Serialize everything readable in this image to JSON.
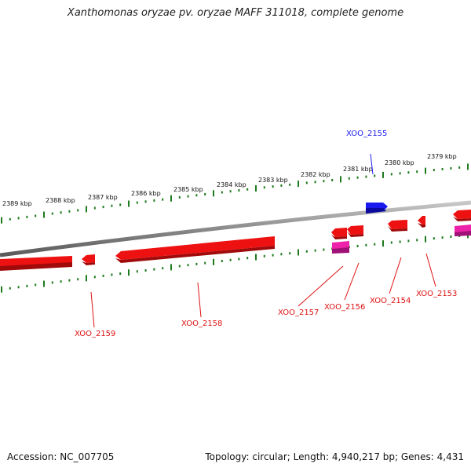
{
  "title": "Xanthomonas oryzae pv. oryzae MAFF 311018, complete genome",
  "footer": {
    "accession": "Accession: NC_007705",
    "summary": "Topology: circular; Length: 4,940,217 bp; Genes: 4,431"
  },
  "colors": {
    "backbone": "#8a8a8a",
    "tick": "#1e7a1e",
    "gene_forward": "#1a1aee",
    "gene_reverse": "#ee1111",
    "gene_reverse_alt": "#ee22aa",
    "label_forward": "#1a1aee",
    "label_reverse": "#dd1111"
  },
  "scale_labels": [
    "2389 kbp",
    "2388 kbp",
    "2387 kbp",
    "2386 kbp",
    "2385 kbp",
    "2384 kbp",
    "2383 kbp",
    "2382 kbp",
    "2381 kbp",
    "2380 kbp",
    "2379 kbp"
  ],
  "genes": [
    {
      "label": "XOO_2155",
      "strand": "+"
    },
    {
      "label": "XOO_2153",
      "strand": "-"
    },
    {
      "label": "XOO_2154",
      "strand": "-"
    },
    {
      "label": "XOO_2156",
      "strand": "-"
    },
    {
      "label": "XOO_2157",
      "strand": "-"
    },
    {
      "label": "XOO_2158",
      "strand": "-"
    },
    {
      "label": "XOO_2159",
      "strand": "-"
    }
  ]
}
